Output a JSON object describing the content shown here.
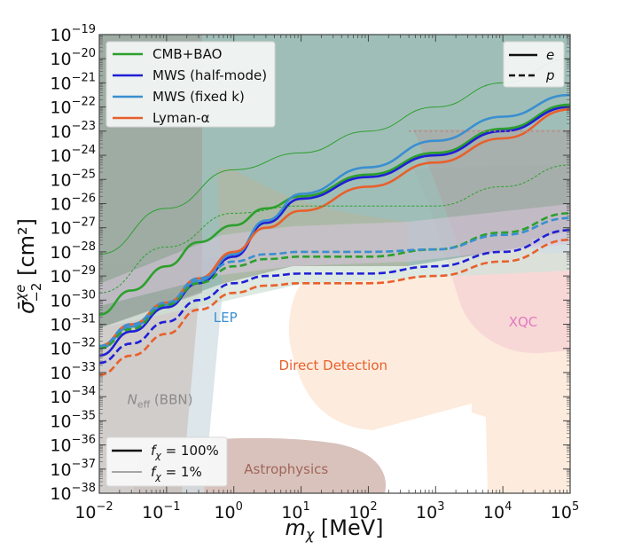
{
  "chart_data": {
    "type": "line",
    "title": "",
    "xlabel": "m_χ  [MeV]",
    "ylabel": "σ̄^{χe}_{-2}  [cm²]",
    "xscale": "log",
    "yscale": "log",
    "xlim": [
      0.01,
      100000
    ],
    "ylim": [
      1e-38,
      1e-19
    ],
    "grid": false,
    "x_ticks": [
      {
        "base": "10",
        "exp": "−2",
        "value": 0.01
      },
      {
        "base": "10",
        "exp": "−1",
        "value": 0.1
      },
      {
        "base": "10",
        "exp": "0",
        "value": 1
      },
      {
        "base": "10",
        "exp": "1",
        "value": 10
      },
      {
        "base": "10",
        "exp": "2",
        "value": 100
      },
      {
        "base": "10",
        "exp": "3",
        "value": 1000
      },
      {
        "base": "10",
        "exp": "4",
        "value": 10000
      },
      {
        "base": "10",
        "exp": "5",
        "value": 100000
      }
    ],
    "y_ticks": [
      {
        "base": "10",
        "exp": "−19",
        "value": -19
      },
      {
        "base": "10",
        "exp": "−20",
        "value": -20
      },
      {
        "base": "10",
        "exp": "−21",
        "value": -21
      },
      {
        "base": "10",
        "exp": "−22",
        "value": -22
      },
      {
        "base": "10",
        "exp": "−23",
        "value": -23
      },
      {
        "base": "10",
        "exp": "−24",
        "value": -24
      },
      {
        "base": "10",
        "exp": "−25",
        "value": -25
      },
      {
        "base": "10",
        "exp": "−26",
        "value": -26
      },
      {
        "base": "10",
        "exp": "−27",
        "value": -27
      },
      {
        "base": "10",
        "exp": "−28",
        "value": -28
      },
      {
        "base": "10",
        "exp": "−29",
        "value": -29
      },
      {
        "base": "10",
        "exp": "−30",
        "value": -30
      },
      {
        "base": "10",
        "exp": "−31",
        "value": -31
      },
      {
        "base": "10",
        "exp": "−32",
        "value": -32
      },
      {
        "base": "10",
        "exp": "−33",
        "value": -33
      },
      {
        "base": "10",
        "exp": "−34",
        "value": -34
      },
      {
        "base": "10",
        "exp": "−35",
        "value": -35
      },
      {
        "base": "10",
        "exp": "−36",
        "value": -36
      },
      {
        "base": "10",
        "exp": "−37",
        "value": -37
      },
      {
        "base": "10",
        "exp": "−38",
        "value": -38
      }
    ],
    "legend_probes": {
      "placement": "top-left",
      "entries": [
        {
          "label": "CMB+BAO",
          "color": "#2ca02c"
        },
        {
          "label": "MWS (half-mode)",
          "color": "#1f1fd6"
        },
        {
          "label": "MWS (fixed k)",
          "color": "#3a8fd0"
        },
        {
          "label": "Lyman-α",
          "color": "#e8602c"
        }
      ]
    },
    "legend_target": {
      "placement": "top-right",
      "entries": [
        {
          "label": "e",
          "style": "solid"
        },
        {
          "label": "p",
          "style": "dashed"
        }
      ]
    },
    "legend_fraction": {
      "placement": "bottom-left",
      "entries": [
        {
          "label": "f_χ = 100%",
          "style": "thick"
        },
        {
          "label": "f_χ = 1%",
          "style": "thin"
        }
      ]
    },
    "region_labels": [
      {
        "label": "LEP",
        "color": "#3a8fd0",
        "x": 0.75,
        "y": -30.9
      },
      {
        "label": "Direct Detection",
        "color": "#e8602c",
        "x": 30,
        "y": -32.9
      },
      {
        "label": "XQC",
        "color": "#e377c2",
        "x": 20000,
        "y": -31.1
      },
      {
        "label": "N_eff (BBN)",
        "color": "#8a8a8a",
        "x": 0.08,
        "y": -34.3
      },
      {
        "label": "Astrophysics",
        "color": "#a0665a",
        "x": 6,
        "y": -37.2
      }
    ],
    "series": [
      {
        "name": "CMB+BAO e (f=100%)",
        "color": "#2ca02c",
        "style": "solid",
        "width": "thick",
        "x": [
          0.01,
          0.03,
          0.1,
          0.3,
          1,
          3,
          10,
          100,
          1000,
          10000,
          100000
        ],
        "y": [
          -30.6,
          -29.6,
          -28.6,
          -27.6,
          -26.9,
          -26.2,
          -25.7,
          -24.8,
          -23.9,
          -22.9,
          -21.9
        ]
      },
      {
        "name": "MWS half-mode e (f=100%)",
        "color": "#1f1fd6",
        "style": "solid",
        "width": "thick",
        "x": [
          0.01,
          0.03,
          0.1,
          0.3,
          1,
          3,
          10,
          100,
          1000,
          10000,
          100000
        ],
        "y": [
          -32.3,
          -31.3,
          -30.3,
          -29.3,
          -28.2,
          -26.8,
          -25.8,
          -24.9,
          -24.0,
          -23.0,
          -22.0
        ]
      },
      {
        "name": "MWS fixed k e (f=100%)",
        "color": "#3a8fd0",
        "style": "solid",
        "width": "thick",
        "x": [
          0.01,
          0.03,
          0.1,
          0.3,
          1,
          3,
          10,
          100,
          1000,
          10000,
          100000
        ],
        "y": [
          -32.0,
          -31.1,
          -30.2,
          -29.2,
          -28.1,
          -26.7,
          -25.6,
          -24.5,
          -23.4,
          -22.4,
          -21.5
        ]
      },
      {
        "name": "Lyman-α e (f=100%)",
        "color": "#e8602c",
        "style": "solid",
        "width": "thick",
        "x": [
          0.01,
          0.03,
          0.1,
          0.3,
          1,
          3,
          10,
          100,
          1000,
          10000,
          100000
        ],
        "y": [
          -31.9,
          -31.0,
          -30.1,
          -29.1,
          -28.0,
          -27.0,
          -26.3,
          -25.3,
          -24.3,
          -23.3,
          -22.1
        ]
      },
      {
        "name": "CMB+BAO p (f=100%)",
        "color": "#2ca02c",
        "style": "dashed",
        "width": "thick",
        "x": [
          0.01,
          0.03,
          0.1,
          0.3,
          1,
          3,
          10,
          100,
          1000,
          10000,
          100000
        ],
        "y": [
          -32.0,
          -31.2,
          -30.2,
          -29.3,
          -28.6,
          -28.3,
          -28.2,
          -28.2,
          -27.9,
          -27.2,
          -26.4
        ]
      },
      {
        "name": "MWS half-mode p (f=100%)",
        "color": "#1f1fd6",
        "style": "dashed",
        "width": "thick",
        "x": [
          0.01,
          0.03,
          0.1,
          0.3,
          1,
          3,
          10,
          100,
          1000,
          10000,
          100000
        ],
        "y": [
          -32.6,
          -31.8,
          -30.9,
          -30.0,
          -29.3,
          -29.0,
          -28.9,
          -28.9,
          -28.6,
          -28.0,
          -27.1
        ]
      },
      {
        "name": "MWS fixed k p (f=100%)",
        "color": "#3a8fd0",
        "style": "dashed",
        "width": "thick",
        "x": [
          0.01,
          0.03,
          0.1,
          0.3,
          1,
          3,
          10,
          100,
          1000,
          10000,
          100000
        ],
        "y": [
          -31.9,
          -31.0,
          -30.1,
          -29.1,
          -28.4,
          -28.1,
          -28.0,
          -28.0,
          -27.9,
          -27.3,
          -26.6
        ]
      },
      {
        "name": "Lyman-α p (f=100%)",
        "color": "#e8602c",
        "style": "dashed",
        "width": "thick",
        "x": [
          0.01,
          0.03,
          0.1,
          0.3,
          1,
          3,
          10,
          100,
          1000,
          10000,
          100000
        ],
        "y": [
          -33.1,
          -32.3,
          -31.4,
          -30.4,
          -29.7,
          -29.4,
          -29.3,
          -29.3,
          -29.0,
          -28.4,
          -27.5
        ]
      },
      {
        "name": "CMB+BAO e (f=1%)",
        "color": "#2ca02c",
        "style": "solid",
        "width": "thin",
        "x": [
          0.01,
          0.1,
          1,
          10,
          100,
          1000,
          10000,
          100000
        ],
        "y": [
          -28.1,
          -26.2,
          -24.6,
          -23.9,
          -23.0,
          -22.0,
          -21.0,
          -20.0
        ]
      },
      {
        "name": "CMB+BAO p (f=1%)",
        "color": "#2ca02c",
        "style": "dashed",
        "width": "thin",
        "x": [
          0.01,
          0.1,
          1,
          10,
          100,
          1000,
          10000,
          100000
        ],
        "y": [
          -29.7,
          -27.8,
          -26.4,
          -26.1,
          -26.1,
          -26.1,
          -25.3,
          -24.4
        ]
      }
    ],
    "xqc_limit": {
      "name": "XQC upper edge",
      "style": "dotted",
      "color": "#c08080",
      "x": [
        400,
        100000
      ],
      "y": [
        -23.0,
        -23.0
      ]
    }
  }
}
